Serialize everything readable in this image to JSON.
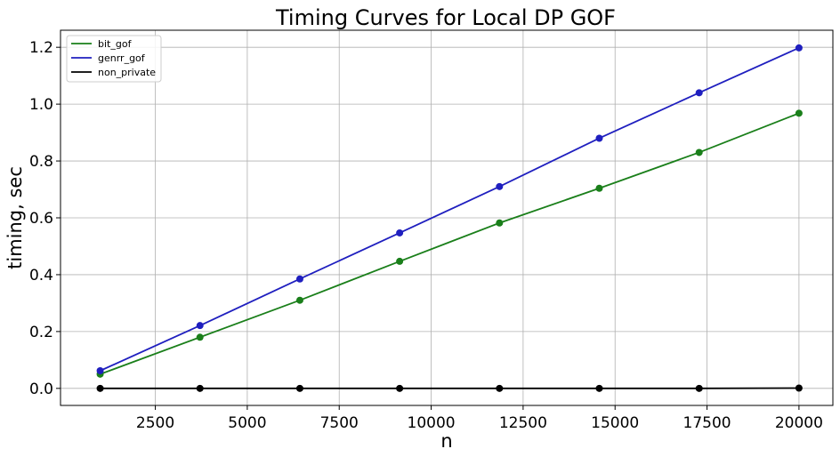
{
  "chart_data": {
    "type": "line",
    "title": "Timing Curves for Local DP GOF",
    "xlabel": "n",
    "ylabel": "timing, sec",
    "xlim": [
      -78,
      20922
    ],
    "ylim": [
      -0.06,
      1.26
    ],
    "x_ticks": [
      2500,
      5000,
      7500,
      10000,
      12500,
      15000,
      17500,
      20000
    ],
    "y_ticks": [
      0.0,
      0.2,
      0.4,
      0.6,
      0.8,
      1.0,
      1.2
    ],
    "grid": true,
    "legend_position": "upper-left",
    "x": [
      1000,
      3714,
      6429,
      9143,
      11857,
      14571,
      17286,
      20000
    ],
    "series": [
      {
        "name": "bit_gof",
        "color": "#1a7f1a",
        "values": [
          0.05,
          0.18,
          0.31,
          0.447,
          0.582,
          0.704,
          0.83,
          0.968
        ]
      },
      {
        "name": "genrr_gof",
        "color": "#1f1fbf",
        "values": [
          0.062,
          0.221,
          0.385,
          0.547,
          0.71,
          0.88,
          1.04,
          1.198
        ]
      },
      {
        "name": "non_private",
        "color": "#000000",
        "values": [
          0.0,
          0.0,
          0.0,
          0.0,
          0.0,
          0.0,
          0.0,
          0.001
        ]
      }
    ]
  }
}
